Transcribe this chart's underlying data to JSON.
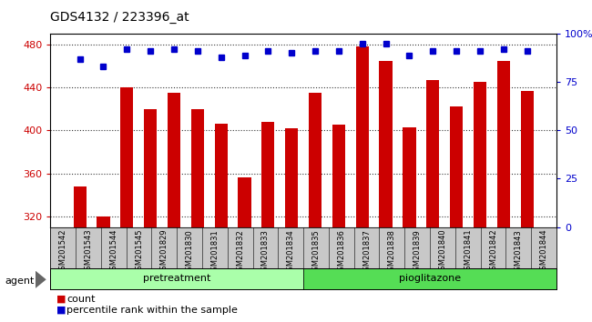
{
  "title": "GDS4132 / 223396_at",
  "samples": [
    "GSM201542",
    "GSM201543",
    "GSM201544",
    "GSM201545",
    "GSM201829",
    "GSM201830",
    "GSM201831",
    "GSM201832",
    "GSM201833",
    "GSM201834",
    "GSM201835",
    "GSM201836",
    "GSM201837",
    "GSM201838",
    "GSM201839",
    "GSM201840",
    "GSM201841",
    "GSM201842",
    "GSM201843",
    "GSM201844"
  ],
  "counts": [
    348,
    320,
    440,
    420,
    435,
    420,
    406,
    356,
    408,
    402,
    435,
    405,
    478,
    465,
    403,
    447,
    422,
    445,
    465,
    437
  ],
  "percentiles": [
    87,
    83,
    92,
    91,
    92,
    91,
    88,
    89,
    91,
    90,
    91,
    91,
    95,
    95,
    89,
    91,
    91,
    91,
    92,
    91
  ],
  "groups": [
    "pretreatment",
    "pretreatment",
    "pretreatment",
    "pretreatment",
    "pretreatment",
    "pretreatment",
    "pretreatment",
    "pretreatment",
    "pretreatment",
    "pretreatment",
    "pioglitazone",
    "pioglitazone",
    "pioglitazone",
    "pioglitazone",
    "pioglitazone",
    "pioglitazone",
    "pioglitazone",
    "pioglitazone",
    "pioglitazone",
    "pioglitazone"
  ],
  "bar_color": "#cc0000",
  "dot_color": "#0000cc",
  "ylim_left": [
    310,
    490
  ],
  "ylim_right": [
    0,
    100
  ],
  "yticks_left": [
    320,
    360,
    400,
    440,
    480
  ],
  "yticks_right": [
    0,
    25,
    50,
    75,
    100
  ],
  "pre_color": "#aaffaa",
  "pio_color": "#55dd55",
  "bg_color": "#c8c8c8",
  "agent_label": "agent",
  "legend_count_label": "count",
  "legend_pct_label": "percentile rank within the sample",
  "n_pretreatment": 10,
  "n_pioglitazone": 10
}
